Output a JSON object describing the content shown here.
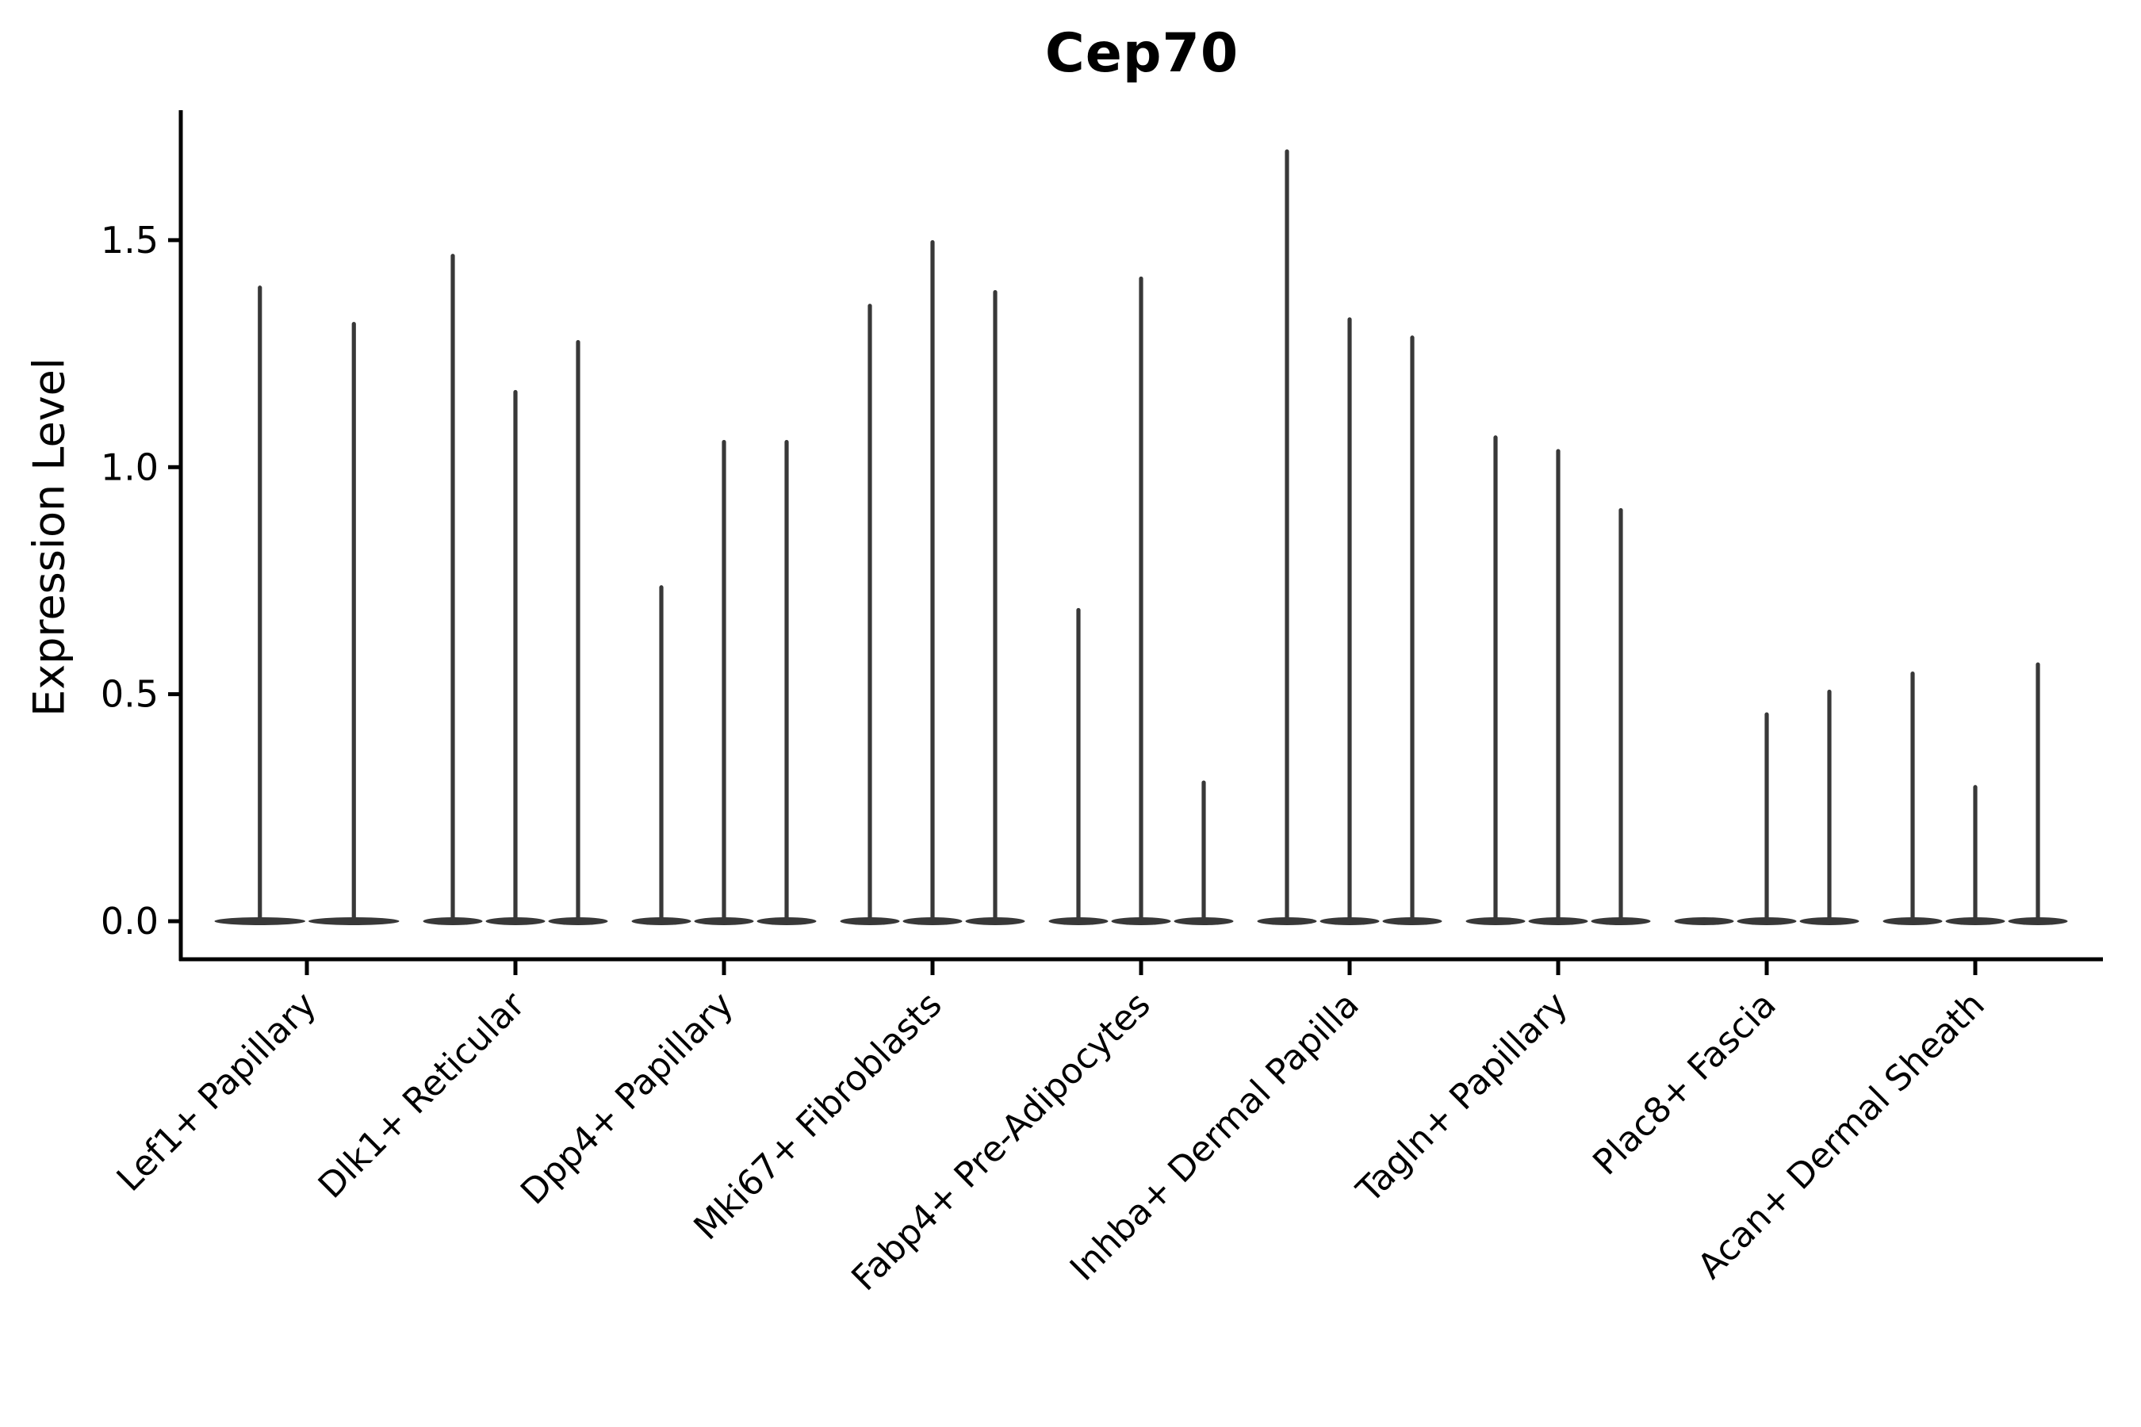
{
  "figure": {
    "title": "Cep70",
    "y_axis_title": "Expression Level"
  },
  "chart_data": {
    "type": "violin",
    "title": "Cep70",
    "xlabel": "",
    "ylabel": "Expression Level",
    "ytick_labels": [
      "0.0",
      "0.5",
      "1.0",
      "1.5"
    ],
    "ytick_values": [
      0.0,
      0.5,
      1.0,
      1.5
    ],
    "ylim": [
      -0.085,
      1.785
    ],
    "grid": false,
    "legend": "none",
    "background": "#ffffff",
    "colors": {
      "violin": "#383838",
      "axis": "#000000",
      "text": "#000000"
    },
    "categories": [
      "Lef1+ Papillary",
      "Dlk1+ Reticular",
      "Dpp4+ Papillary",
      "Mki67+ Fibroblasts",
      "Fabp4+ Pre-Adipocytes",
      "Inhba+ Dermal Papilla",
      "Tagln+ Papillary",
      "Plac8+ Fascia",
      "Acan+ Dermal Sheath"
    ],
    "description": "Each category holds one thin spike-violin per sample sitting on a flat lens-shaped base at 0; value = top of each spike (max expression).",
    "groups": [
      {
        "label": "Lef1+ Papillary",
        "violin_maxima": [
          1.4,
          1.32
        ]
      },
      {
        "label": "Dlk1+ Reticular",
        "violin_maxima": [
          1.47,
          1.17,
          1.28
        ]
      },
      {
        "label": "Dpp4+ Papillary",
        "violin_maxima": [
          0.74,
          1.06,
          1.06
        ]
      },
      {
        "label": "Mki67+ Fibroblasts",
        "violin_maxima": [
          1.36,
          1.5,
          1.39
        ]
      },
      {
        "label": "Fabp4+ Pre-Adipocytes",
        "violin_maxima": [
          0.69,
          1.42,
          0.31
        ]
      },
      {
        "label": "Inhba+ Dermal Papilla",
        "violin_maxima": [
          1.7,
          1.33,
          1.29
        ]
      },
      {
        "label": "Tagln+ Papillary",
        "violin_maxima": [
          1.07,
          1.04,
          0.91
        ]
      },
      {
        "label": "Plac8+ Fascia",
        "violin_maxima": [
          0.0,
          0.46,
          0.51
        ]
      },
      {
        "label": "Acan+ Dermal Sheath",
        "violin_maxima": [
          0.55,
          0.3,
          0.57
        ]
      }
    ]
  }
}
